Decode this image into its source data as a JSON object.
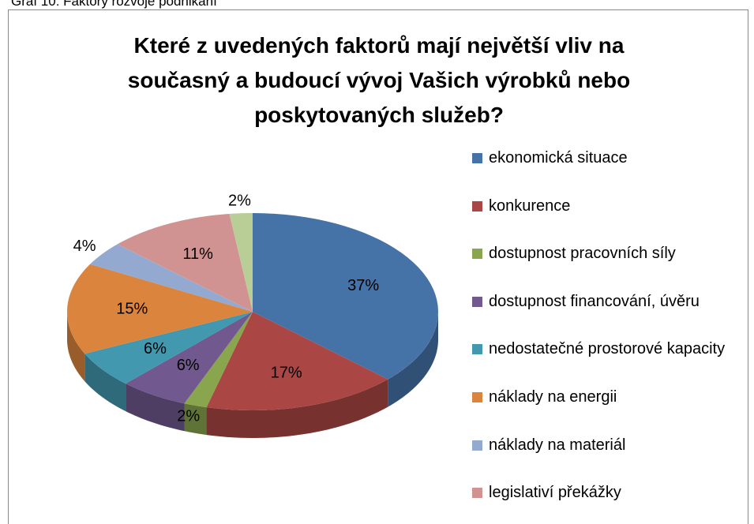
{
  "caption": "Graf 10: Faktory rozvoje podnikání",
  "chart_data": {
    "type": "pie",
    "title": "Které z uvedených faktorů mají největší vliv na současný a budoucí vývoj Vašich výrobků nebo poskytovaných služeb?",
    "categories": [
      "ekonomická situace",
      "konkurence",
      "dostupnost pracovních síly",
      "dostupnost financování, úvěru",
      "nedostatečné prostorové kapacity",
      "náklady na energii",
      "náklady na materiál",
      "legislativí překážky",
      null
    ],
    "values": [
      37,
      17,
      2,
      6,
      6,
      15,
      4,
      11,
      2
    ],
    "value_labels": [
      "37%",
      "17%",
      "2%",
      "6%",
      "6%",
      "15%",
      "4%",
      "11%",
      "2%"
    ],
    "colors": [
      "#4572a7",
      "#aa4643",
      "#89a54e",
      "#71588f",
      "#4198af",
      "#db843d",
      "#93a9cf",
      "#d19392",
      "#b9cd96"
    ],
    "legend": "right"
  }
}
